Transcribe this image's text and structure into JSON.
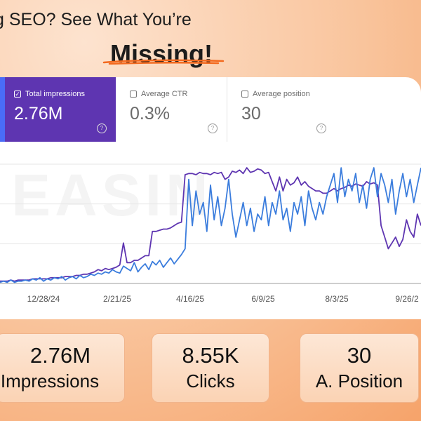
{
  "headline": {
    "line1": "g SEO? See What You’re",
    "line2": "Missing!",
    "accent_color": "#f36a1f"
  },
  "metric_tabs": [
    {
      "label": "Total impressions",
      "value": "2.76M",
      "checked": true,
      "color": "#5e35b1"
    },
    {
      "label": "Average CTR",
      "value": "0.3%",
      "checked": false
    },
    {
      "label": "Average position",
      "value": "30",
      "checked": false
    }
  ],
  "help_icon": "?",
  "check_mark": "✓",
  "watermark": "EASIN",
  "chart_data": {
    "type": "line",
    "x_ticks": [
      "12/28/24",
      "2/21/25",
      "4/16/25",
      "6/9/25",
      "8/3/25",
      "9/26/2"
    ],
    "series": [
      {
        "color": "#5e35b1",
        "values": [
          2,
          2,
          2,
          3,
          2,
          3,
          3,
          3,
          3,
          4,
          4,
          4,
          4,
          4,
          5,
          5,
          5,
          5,
          6,
          6,
          6,
          7,
          7,
          8,
          8,
          9,
          10,
          12,
          11,
          13,
          12,
          13,
          14,
          16,
          35,
          18,
          18,
          20,
          20,
          22,
          24,
          24,
          45,
          45,
          46,
          47,
          47,
          48,
          50,
          52,
          53,
          94,
          95,
          95,
          94,
          96,
          95,
          95,
          94,
          96,
          95,
          96,
          90,
          92,
          97,
          96,
          98,
          95,
          100,
          96,
          97,
          99,
          98,
          95,
          96,
          88,
          80,
          92,
          80,
          90,
          85,
          87,
          92,
          85,
          88,
          84,
          82,
          80,
          80,
          78,
          78,
          80,
          82,
          80,
          82,
          83,
          85,
          84,
          86,
          85,
          84,
          88,
          86,
          87,
          85,
          50,
          40,
          30,
          35,
          40,
          32,
          38,
          55,
          45,
          40,
          60,
          50
        ]
      },
      {
        "color": "#3b7ddd",
        "values": [
          1,
          2,
          1,
          3,
          1,
          2,
          2,
          3,
          2,
          4,
          3,
          5,
          2,
          4,
          3,
          5,
          4,
          6,
          3,
          5,
          6,
          4,
          7,
          5,
          6,
          8,
          7,
          9,
          8,
          10,
          9,
          12,
          10,
          9,
          15,
          13,
          11,
          18,
          10,
          14,
          17,
          12,
          19,
          16,
          20,
          14,
          18,
          22,
          17,
          21,
          25,
          30,
          90,
          50,
          80,
          60,
          70,
          45,
          85,
          55,
          75,
          50,
          65,
          90,
          60,
          40,
          55,
          70,
          50,
          65,
          45,
          60,
          55,
          75,
          50,
          70,
          60,
          80,
          55,
          65,
          45,
          70,
          60,
          75,
          50,
          80,
          65,
          55,
          70,
          60,
          75,
          85,
          95,
          70,
          100,
          75,
          90,
          80,
          95,
          70,
          85,
          65,
          90,
          100,
          75,
          95,
          85,
          70,
          90,
          60,
          80,
          95,
          75,
          90,
          70,
          85,
          100
        ]
      }
    ]
  },
  "stats": [
    {
      "value": "2.76M",
      "label": "Impressions",
      "label_prefix": "I"
    },
    {
      "value": "8.55K",
      "label": "Clicks"
    },
    {
      "value": "30",
      "label": "A. Position"
    }
  ]
}
